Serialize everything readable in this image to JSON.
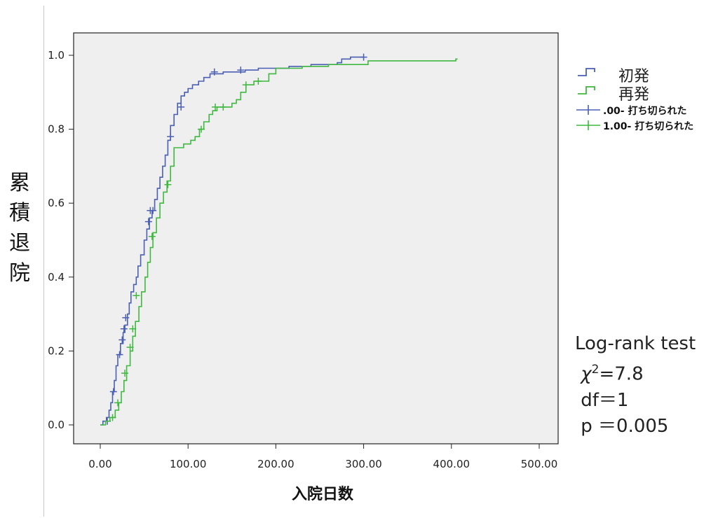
{
  "chart_data": {
    "type": "line",
    "title": "",
    "xlabel": "入院日数",
    "ylabel": "累積退院",
    "xlim": [
      0,
      500
    ],
    "ylim": [
      0,
      1.0
    ],
    "x_ticks": [
      "0.00",
      "100.00",
      "200.00",
      "300.00",
      "400.00",
      "500.00"
    ],
    "y_ticks": [
      "0.0",
      "0.2",
      "0.4",
      "0.6",
      "0.8",
      "1.0"
    ],
    "grid": false,
    "legend_position": "right",
    "series": [
      {
        "name": "初発",
        "color": "#4a5fb4",
        "steps": [
          [
            0,
            0
          ],
          [
            3,
            0.01
          ],
          [
            7,
            0.02
          ],
          [
            10,
            0.04
          ],
          [
            12,
            0.06
          ],
          [
            14,
            0.09
          ],
          [
            16,
            0.12
          ],
          [
            18,
            0.16
          ],
          [
            20,
            0.19
          ],
          [
            23,
            0.22
          ],
          [
            26,
            0.25
          ],
          [
            28,
            0.27
          ],
          [
            31,
            0.3
          ],
          [
            33,
            0.33
          ],
          [
            35,
            0.36
          ],
          [
            38,
            0.38
          ],
          [
            41,
            0.4
          ],
          [
            43,
            0.43
          ],
          [
            46,
            0.46
          ],
          [
            50,
            0.5
          ],
          [
            53,
            0.53
          ],
          [
            56,
            0.56
          ],
          [
            59,
            0.58
          ],
          [
            62,
            0.61
          ],
          [
            65,
            0.64
          ],
          [
            68,
            0.67
          ],
          [
            71,
            0.7
          ],
          [
            74,
            0.73
          ],
          [
            77,
            0.77
          ],
          [
            80,
            0.81
          ],
          [
            84,
            0.84
          ],
          [
            88,
            0.87
          ],
          [
            92,
            0.89
          ],
          [
            96,
            0.9
          ],
          [
            100,
            0.91
          ],
          [
            105,
            0.92
          ],
          [
            112,
            0.93
          ],
          [
            118,
            0.94
          ],
          [
            125,
            0.95
          ],
          [
            140,
            0.955
          ],
          [
            165,
            0.96
          ],
          [
            180,
            0.965
          ],
          [
            215,
            0.97
          ],
          [
            240,
            0.975
          ],
          [
            270,
            0.98
          ],
          [
            275,
            0.99
          ],
          [
            285,
            0.995
          ],
          [
            300,
            0.995
          ]
        ],
        "censored": [
          [
            8,
            0.01
          ],
          [
            15,
            0.09
          ],
          [
            22,
            0.19
          ],
          [
            25,
            0.23
          ],
          [
            27,
            0.26
          ],
          [
            29,
            0.29
          ],
          [
            55,
            0.55
          ],
          [
            57,
            0.58
          ],
          [
            60,
            0.58
          ],
          [
            80,
            0.78
          ],
          [
            92,
            0.86
          ],
          [
            130,
            0.955
          ],
          [
            160,
            0.96
          ],
          [
            300,
            0.995
          ]
        ]
      },
      {
        "name": "再発",
        "color": "#3fb83f",
        "steps": [
          [
            0,
            0
          ],
          [
            6,
            0.01
          ],
          [
            11,
            0.02
          ],
          [
            17,
            0.04
          ],
          [
            21,
            0.06
          ],
          [
            24,
            0.09
          ],
          [
            27,
            0.12
          ],
          [
            30,
            0.16
          ],
          [
            34,
            0.2
          ],
          [
            37,
            0.24
          ],
          [
            40,
            0.28
          ],
          [
            44,
            0.32
          ],
          [
            47,
            0.36
          ],
          [
            51,
            0.4
          ],
          [
            54,
            0.44
          ],
          [
            57,
            0.48
          ],
          [
            60,
            0.52
          ],
          [
            64,
            0.56
          ],
          [
            68,
            0.6
          ],
          [
            72,
            0.63
          ],
          [
            76,
            0.66
          ],
          [
            80,
            0.7
          ],
          [
            84,
            0.75
          ],
          [
            90,
            0.75
          ],
          [
            95,
            0.76
          ],
          [
            103,
            0.77
          ],
          [
            108,
            0.78
          ],
          [
            113,
            0.8
          ],
          [
            118,
            0.82
          ],
          [
            124,
            0.84
          ],
          [
            128,
            0.85
          ],
          [
            133,
            0.86
          ],
          [
            143,
            0.86
          ],
          [
            150,
            0.87
          ],
          [
            155,
            0.88
          ],
          [
            160,
            0.9
          ],
          [
            166,
            0.92
          ],
          [
            175,
            0.93
          ],
          [
            192,
            0.95
          ],
          [
            200,
            0.965
          ],
          [
            230,
            0.97
          ],
          [
            260,
            0.975
          ],
          [
            305,
            0.985
          ],
          [
            405,
            0.99
          ],
          [
            407,
            0.99
          ]
        ],
        "censored": [
          [
            14,
            0.02
          ],
          [
            20,
            0.06
          ],
          [
            28,
            0.14
          ],
          [
            34,
            0.21
          ],
          [
            37,
            0.26
          ],
          [
            41,
            0.35
          ],
          [
            59,
            0.51
          ],
          [
            77,
            0.65
          ],
          [
            115,
            0.8
          ],
          [
            131,
            0.86
          ],
          [
            140,
            0.86
          ],
          [
            166,
            0.92
          ],
          [
            180,
            0.93
          ]
        ]
      }
    ],
    "legend": [
      {
        "label": "初発",
        "kind": "line",
        "color": "#4a5fb4"
      },
      {
        "label": "再発",
        "kind": "line",
        "color": "#3fb83f"
      },
      {
        "label": ".00- 打ち切られた",
        "kind": "censor",
        "color": "#4a5fb4"
      },
      {
        "label": "1.00- 打ち切られた",
        "kind": "censor",
        "color": "#3fb83f"
      }
    ],
    "annotations": [
      "Log-rank test",
      "χ²=7.8",
      "df＝1",
      "p ＝0.005"
    ]
  },
  "ylabel_chars": [
    "累",
    "積",
    "退",
    "院"
  ],
  "stats": {
    "line1": "Log-rank test",
    "chi_symbol": "χ",
    "chi_sup": "2",
    "chi_value": "=7.8",
    "line3": " df＝1",
    "line4": " p ＝0.005"
  },
  "plot_bg_color": "#efefef"
}
